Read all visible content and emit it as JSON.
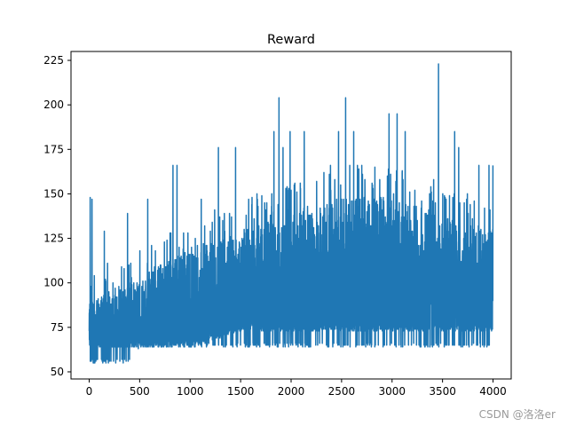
{
  "chart_data": {
    "type": "line",
    "title": "Reward",
    "xlabel": "",
    "ylabel": "",
    "xlim": [
      -180,
      4180
    ],
    "ylim": [
      46,
      230
    ],
    "xticks": [
      0,
      500,
      1000,
      1500,
      2000,
      2500,
      3000,
      3500,
      4000
    ],
    "yticks": [
      50,
      75,
      100,
      125,
      150,
      175,
      200,
      225
    ],
    "grid": false,
    "series": [
      {
        "color": "#1f77b4",
        "n_points": 4000,
        "floor_segments": [
          {
            "x_start": 0,
            "x_end": 420,
            "floor": 55
          },
          {
            "x_start": 420,
            "x_end": 500,
            "floor": 63
          },
          {
            "x_start": 500,
            "x_end": 4000,
            "floor": 64
          }
        ],
        "band": [
          {
            "x": 0,
            "low": 64,
            "high": 92
          },
          {
            "x": 500,
            "low": 64,
            "high": 101
          },
          {
            "x": 1000,
            "low": 64,
            "high": 120
          },
          {
            "x": 1500,
            "low": 73,
            "high": 129
          },
          {
            "x": 2000,
            "low": 73,
            "high": 138
          },
          {
            "x": 2500,
            "low": 73,
            "high": 148
          },
          {
            "x": 3000,
            "low": 73,
            "high": 148
          },
          {
            "x": 3500,
            "low": 73,
            "high": 138
          },
          {
            "x": 4000,
            "low": 73,
            "high": 129
          }
        ],
        "peaks": [
          {
            "x": 10,
            "y": 148
          },
          {
            "x": 28,
            "y": 147
          },
          {
            "x": 150,
            "y": 129
          },
          {
            "x": 380,
            "y": 139
          },
          {
            "x": 580,
            "y": 147
          },
          {
            "x": 830,
            "y": 166
          },
          {
            "x": 870,
            "y": 166
          },
          {
            "x": 1110,
            "y": 147
          },
          {
            "x": 1280,
            "y": 176
          },
          {
            "x": 1450,
            "y": 176
          },
          {
            "x": 1580,
            "y": 147
          },
          {
            "x": 1830,
            "y": 185
          },
          {
            "x": 1880,
            "y": 204
          },
          {
            "x": 1920,
            "y": 176
          },
          {
            "x": 1990,
            "y": 185
          },
          {
            "x": 2130,
            "y": 185
          },
          {
            "x": 2390,
            "y": 166
          },
          {
            "x": 2470,
            "y": 185
          },
          {
            "x": 2540,
            "y": 204
          },
          {
            "x": 2620,
            "y": 185
          },
          {
            "x": 2700,
            "y": 166
          },
          {
            "x": 2970,
            "y": 195
          },
          {
            "x": 3050,
            "y": 195
          },
          {
            "x": 3130,
            "y": 185
          },
          {
            "x": 3460,
            "y": 223
          },
          {
            "x": 3620,
            "y": 185
          },
          {
            "x": 3660,
            "y": 176
          },
          {
            "x": 3860,
            "y": 166
          },
          {
            "x": 3960,
            "y": 166
          },
          {
            "x": 4000,
            "y": 166
          }
        ]
      }
    ]
  },
  "watermark": "CSDN @洛洛er"
}
